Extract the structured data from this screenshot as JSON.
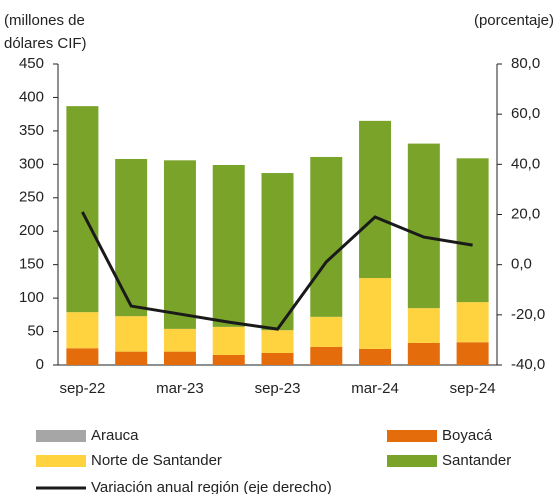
{
  "chart_data": {
    "type": "stacked-bar-line",
    "y_label_lines": [
      "(millones de",
      "dólares CIF)"
    ],
    "y2_label": "(porcentaje)",
    "categories": [
      "sep-22",
      null,
      "mar-23",
      null,
      "sep-23",
      null,
      "mar-24",
      null,
      "sep-24"
    ],
    "ylim": [
      0,
      450
    ],
    "yticks": [
      0,
      50,
      100,
      150,
      200,
      250,
      300,
      350,
      400,
      450
    ],
    "y2lim": [
      -40,
      80
    ],
    "y2ticks": [
      {
        "value": -40,
        "label": "-40,0"
      },
      {
        "value": -20,
        "label": "-20,0"
      },
      {
        "value": 0,
        "label": "0,0"
      },
      {
        "value": 20,
        "label": "20,0"
      },
      {
        "value": 40,
        "label": "40,0"
      },
      {
        "value": 60,
        "label": "60,0"
      },
      {
        "value": 80,
        "label": "80,0"
      }
    ],
    "series": [
      {
        "name": "Arauca",
        "color": "#a6a6a6",
        "values": [
          0,
          0,
          0,
          0,
          0,
          0,
          0,
          0,
          0
        ]
      },
      {
        "name": "Boyacá",
        "color": "#e46c0a",
        "values": [
          25,
          20,
          20,
          15,
          18,
          27,
          24,
          33,
          34
        ]
      },
      {
        "name": "Norte de Santander",
        "color": "#ffd23f",
        "values": [
          54,
          53,
          34,
          42,
          34,
          45,
          106,
          52,
          60
        ]
      },
      {
        "name": "Santander",
        "color": "#7aa32a",
        "values": [
          308,
          235,
          252,
          242,
          235,
          239,
          235,
          246,
          215
        ]
      },
      {
        "name": "Variación anual región (eje derecho)",
        "color": "#1a1a1a",
        "axis": "y2",
        "values": [
          21,
          -16.5,
          -19.7,
          -22.9,
          -25.7,
          1.1,
          19,
          11,
          7.8
        ]
      }
    ]
  }
}
